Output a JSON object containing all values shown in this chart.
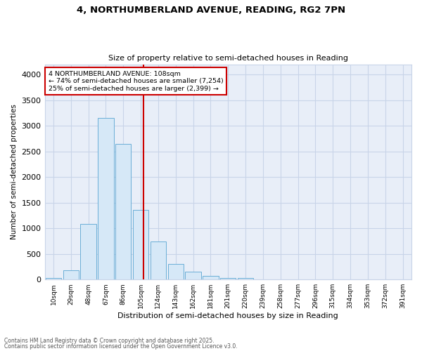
{
  "title_line1": "4, NORTHUMBERLAND AVENUE, READING, RG2 7PN",
  "title_line2": "Size of property relative to semi-detached houses in Reading",
  "xlabel": "Distribution of semi-detached houses by size in Reading",
  "ylabel": "Number of semi-detached properties",
  "bar_labels": [
    "10sqm",
    "29sqm",
    "48sqm",
    "67sqm",
    "86sqm",
    "105sqm",
    "124sqm",
    "143sqm",
    "162sqm",
    "181sqm",
    "201sqm",
    "220sqm",
    "239sqm",
    "258sqm",
    "277sqm",
    "296sqm",
    "315sqm",
    "334sqm",
    "353sqm",
    "372sqm",
    "391sqm"
  ],
  "bar_values": [
    25,
    185,
    1080,
    3150,
    2640,
    1360,
    740,
    310,
    155,
    65,
    35,
    25,
    0,
    0,
    0,
    0,
    0,
    0,
    0,
    0,
    0
  ],
  "bar_color": "#d6e8f7",
  "bar_edge_color": "#6aaed6",
  "vline_color": "#cc0000",
  "annotation_title": "4 NORTHUMBERLAND AVENUE: 108sqm",
  "annotation_line2": "← 74% of semi-detached houses are smaller (7,254)",
  "annotation_line3": "25% of semi-detached houses are larger (2,399) →",
  "annotation_box_color": "#ffffff",
  "annotation_box_edge": "#cc0000",
  "ylim": [
    0,
    4200
  ],
  "yticks": [
    0,
    500,
    1000,
    1500,
    2000,
    2500,
    3000,
    3500,
    4000
  ],
  "grid_color": "#c8d4e8",
  "background_color": "#e8eef8",
  "footnote_line1": "Contains HM Land Registry data © Crown copyright and database right 2025.",
  "footnote_line2": "Contains public sector information licensed under the Open Government Licence v3.0."
}
